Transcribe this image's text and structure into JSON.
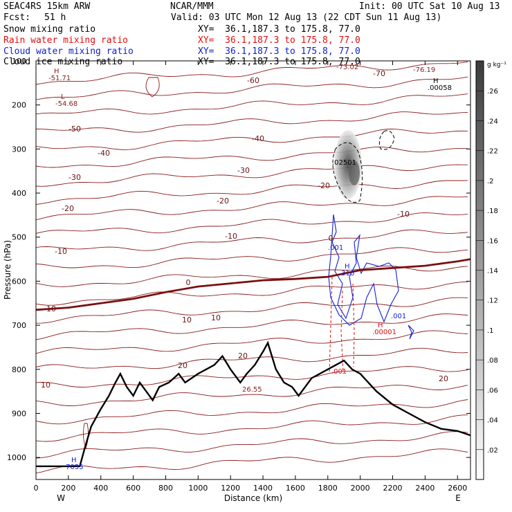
{
  "header": {
    "model": "SEAC4RS 15km ARW",
    "org": "NCAR/MMM",
    "init": "Init: 00 UTC Sat 10 Aug 13",
    "fcst_label": "Fcst:",
    "fcst_value": "51 h",
    "valid": "Valid: 03 UTC Mon 12 Aug 13 (22 CDT Sun 11 Aug 13)",
    "fields": [
      {
        "name": "Snow mixing ratio",
        "xy": "XY=  36.1,187.3 to 175.8, 77.0",
        "color": "#000000"
      },
      {
        "name": "Rain water mixing ratio",
        "xy": "XY=  36.1,187.3 to 175.8, 77.0",
        "color": "#e01010"
      },
      {
        "name": "Cloud water mixing ratio",
        "xy": "XY=  36.1,187.3 to 175.8, 77.0",
        "color": "#1020d0"
      },
      {
        "name": "Cloud ice mixing ratio",
        "xy": "XY=  36.1,187.3 to 175.8, 77.0",
        "color": "#000000"
      }
    ]
  },
  "chart_data": {
    "type": "cross-section",
    "xlabel": "Distance (km)",
    "ylabel": "Pressure (hPa)",
    "x_ticks": [
      0,
      200,
      400,
      600,
      800,
      1000,
      1200,
      1400,
      1600,
      1800,
      2000,
      2200,
      2400,
      2600
    ],
    "y_ticks": [
      200,
      300,
      400,
      500,
      600,
      700,
      800,
      900,
      1000
    ],
    "y_top_label": "100",
    "xlim": [
      0,
      2680
    ],
    "ylim": [
      1050,
      100
    ],
    "west_label": "W",
    "east_label": "E",
    "temperature_contour_labels": [
      "-70",
      "-60",
      "-50",
      "-40",
      "-40",
      "-30",
      "-30",
      "-20",
      "-20",
      "-20",
      "-10",
      "-10",
      "-10",
      "0",
      "0",
      "10",
      "10",
      "10",
      "20",
      "20",
      "20",
      "10"
    ],
    "extrema": [
      {
        "type": "H",
        "value": "-51.71",
        "color": "#8b1a1a"
      },
      {
        "type": "L",
        "value": "-54.68",
        "color": "#8b1a1a"
      },
      {
        "type": "",
        "value": "-73.02",
        "color": "#8b1a1a"
      },
      {
        "type": "",
        "value": "-76.19",
        "color": "#8b1a1a"
      },
      {
        "type": "H",
        "value": ".00058",
        "color": "#000000"
      },
      {
        "type": "",
        "value": ".02501",
        "color": "#000000"
      },
      {
        "type": "",
        "value": ".001",
        "color": "#1020d0"
      },
      {
        "type": "H",
        "value": ".316",
        "color": "#1020d0"
      },
      {
        "type": "",
        "value": ".001",
        "color": "#1020d0"
      },
      {
        "type": "H",
        "value": ".00001",
        "color": "#e01010"
      },
      {
        "type": "",
        "value": ".001",
        "color": "#e01010"
      },
      {
        "type": "",
        "value": "26.55",
        "color": "#8b1a1a"
      },
      {
        "type": "H",
        "value": "7035",
        "color": "#1020d0"
      }
    ],
    "colorbar": {
      "unit": "g kg⁻¹",
      "ticks": [
        ".02",
        ".04",
        ".06",
        ".08",
        ".1",
        ".12",
        ".14",
        ".16",
        ".18",
        ".2",
        ".22",
        ".24",
        ".26"
      ],
      "max_value": 0.28
    },
    "terrain": [
      [
        0,
        1020
      ],
      [
        270,
        1020
      ],
      [
        300,
        980
      ],
      [
        340,
        930
      ],
      [
        400,
        890
      ],
      [
        450,
        860
      ],
      [
        490,
        830
      ],
      [
        520,
        810
      ],
      [
        560,
        840
      ],
      [
        600,
        860
      ],
      [
        640,
        830
      ],
      [
        680,
        850
      ],
      [
        720,
        870
      ],
      [
        760,
        840
      ],
      [
        820,
        830
      ],
      [
        880,
        810
      ],
      [
        920,
        830
      ],
      [
        960,
        820
      ],
      [
        1000,
        810
      ],
      [
        1050,
        800
      ],
      [
        1100,
        790
      ],
      [
        1150,
        770
      ],
      [
        1200,
        800
      ],
      [
        1260,
        830
      ],
      [
        1300,
        810
      ],
      [
        1350,
        790
      ],
      [
        1400,
        760
      ],
      [
        1430,
        740
      ],
      [
        1480,
        800
      ],
      [
        1530,
        830
      ],
      [
        1580,
        840
      ],
      [
        1620,
        860
      ],
      [
        1660,
        840
      ],
      [
        1700,
        820
      ],
      [
        1750,
        810
      ],
      [
        1800,
        800
      ],
      [
        1850,
        790
      ],
      [
        1900,
        780
      ],
      [
        1950,
        800
      ],
      [
        2000,
        810
      ],
      [
        2050,
        830
      ],
      [
        2100,
        850
      ],
      [
        2200,
        880
      ],
      [
        2300,
        900
      ],
      [
        2400,
        920
      ],
      [
        2500,
        935
      ],
      [
        2600,
        940
      ],
      [
        2680,
        950
      ]
    ],
    "zero_isotherm": [
      [
        0,
        665
      ],
      [
        200,
        660
      ],
      [
        400,
        650
      ],
      [
        600,
        640
      ],
      [
        800,
        625
      ],
      [
        1000,
        612
      ],
      [
        1200,
        605
      ],
      [
        1400,
        598
      ],
      [
        1600,
        595
      ],
      [
        1800,
        590
      ],
      [
        2000,
        575
      ],
      [
        2200,
        570
      ],
      [
        2400,
        565
      ],
      [
        2600,
        555
      ],
      [
        2680,
        550
      ]
    ]
  }
}
